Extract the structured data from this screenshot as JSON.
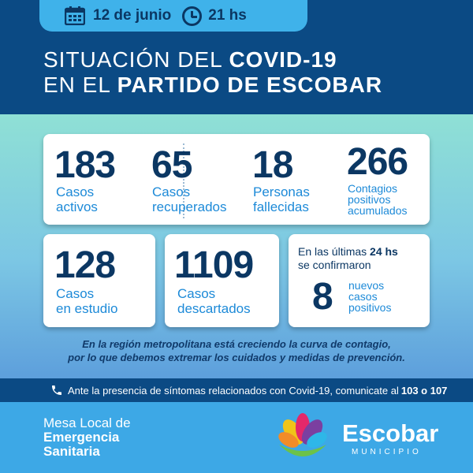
{
  "header": {
    "date": "12 de junio",
    "time": "21 hs",
    "title_line1_light": "SITUACIÓN DEL ",
    "title_line1_bold": "COVID-19",
    "title_line2_light": "EN EL ",
    "title_line2_bold": "PARTIDO DE ESCOBAR"
  },
  "stats": {
    "activos": {
      "value": "183",
      "label1": "Casos",
      "label2": "activos"
    },
    "recuperados": {
      "value": "65",
      "label1": "Casos",
      "label2": "recuperados"
    },
    "fallecidas": {
      "value": "18",
      "label1": "Personas",
      "label2": "fallecidas"
    },
    "acumulados": {
      "value": "266",
      "label1": "Contagios",
      "label2": "positivos",
      "label3": "acumulados"
    },
    "estudio": {
      "value": "128",
      "label1": "Casos",
      "label2": "en estudio"
    },
    "descartados": {
      "value": "1109",
      "label1": "Casos",
      "label2": "descartados"
    },
    "ultimas": {
      "line1": "En las últimas ",
      "line1_bold": "24 hs",
      "line2": "se confirmaron",
      "value": "8",
      "label1": "nuevos",
      "label2": "casos",
      "label3": "positivos"
    }
  },
  "note": {
    "line1": "En la región metropolitana está creciendo la curva de contagio,",
    "line2": "por lo que debemos extremar los cuidados y medidas de prevención."
  },
  "phone": {
    "text": "Ante la presencia de síntomas relacionados con Covid-19, comunicate al ",
    "numbers": "103 o 107"
  },
  "footer": {
    "mesa_line1": "Mesa Local de",
    "mesa_line2": "Emergencia",
    "mesa_line3": "Sanitaria",
    "brand": "Escobar",
    "brand_sub": "MUNICIPIO"
  }
}
